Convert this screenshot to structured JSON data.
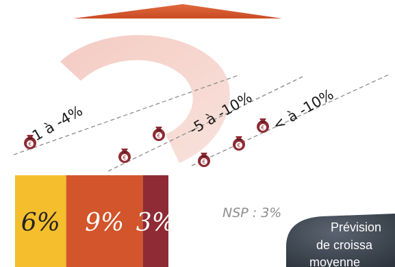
{
  "chart_data": {
    "type": "bar",
    "orientation": "horizontal-stacked",
    "categories": [
      "-1 à -4%",
      "-5 à -10%",
      "< à -10%"
    ],
    "values": [
      6,
      9,
      3
    ],
    "value_labels": [
      "6%",
      "9%",
      "3%"
    ],
    "bag_counts": [
      1,
      2,
      3
    ],
    "colors": [
      "#f5be2c",
      "#d2552b",
      "#8f2b34"
    ],
    "nsp_label": "NSP : 3%",
    "title": "",
    "xlabel": "",
    "ylabel": ""
  },
  "callout": {
    "lines": [
      "Prévision",
      "de croissa",
      "moyenne"
    ]
  },
  "icons": {
    "bag": "money-bag-euro-icon",
    "arrow": "triangle-arrow-icon",
    "arc": "decorative-arc"
  }
}
